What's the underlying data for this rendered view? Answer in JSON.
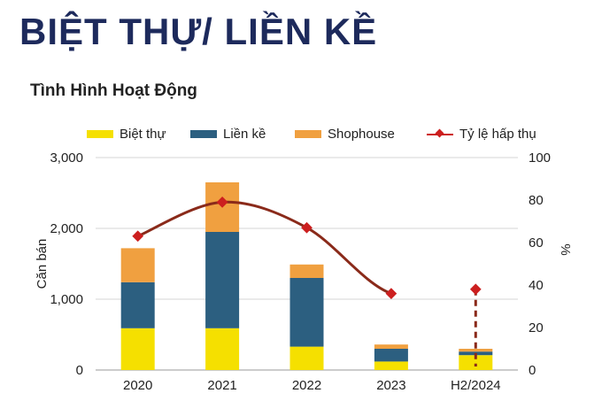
{
  "header": {
    "title": "BIỆT THỰ/ LIỀN KỀ",
    "subtitle": "Tình Hình Hoạt Động"
  },
  "colors": {
    "biet_thu": "#f5e000",
    "lien_ke": "#2c5f80",
    "shophouse": "#f0a040",
    "ty_le": "#cc1f1f",
    "line": "#8a2a1a",
    "title": "#1d2a5c"
  },
  "chart_data": {
    "type": "bar",
    "stacked": true,
    "categories": [
      "2020",
      "2021",
      "2022",
      "2023",
      "H2/2024"
    ],
    "series": [
      {
        "name": "Biệt thự",
        "values": [
          590,
          590,
          330,
          120,
          210
        ],
        "axis": "left"
      },
      {
        "name": "Liền kề",
        "values": [
          650,
          1360,
          970,
          180,
          50
        ],
        "axis": "left"
      },
      {
        "name": "Shophouse",
        "values": [
          480,
          700,
          190,
          60,
          40
        ],
        "axis": "left"
      },
      {
        "name": "Tỷ lệ hấp thụ",
        "values": [
          63,
          79,
          67,
          36,
          38
        ],
        "axis": "right",
        "type": "line"
      }
    ],
    "ylabel": "Căn bán",
    "y2label": "%",
    "ylim": [
      0,
      3000
    ],
    "y2lim": [
      0,
      100
    ],
    "yticks": [
      "0",
      "1,000",
      "2,000",
      "3,000"
    ],
    "y2ticks": [
      "0",
      "20",
      "40",
      "60",
      "80",
      "100"
    ],
    "grid": true,
    "legend_position": "top"
  }
}
